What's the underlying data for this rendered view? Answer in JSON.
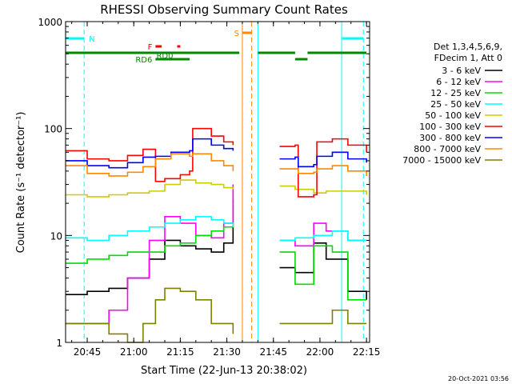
{
  "chart_data": {
    "type": "line",
    "title": "RHESSI Observing Summary Count Rates",
    "xlabel": "Start Time (22-Jun-13 20:38:02)",
    "ylabel": "Count Rate (s⁻¹ detector⁻¹)",
    "x_ticks": [
      "20:45",
      "21:00",
      "21:15",
      "21:30",
      "21:45",
      "22:00",
      "22:15"
    ],
    "y_ticks": [
      "1",
      "10",
      "100",
      "1000"
    ],
    "x_range": [
      "20:38:02",
      "22:16:00"
    ],
    "y_range": [
      1,
      1000
    ],
    "y_scale": "log",
    "legend_header": [
      "Det 1,3,4,5,6,9,",
      "FDecim 1, Att 0"
    ],
    "legend_placement": "right",
    "series": [
      {
        "name": "3 - 6 keV",
        "color": "#000000",
        "points": [
          [
            "20:38",
            2.8
          ],
          [
            "20:45",
            3.0
          ],
          [
            "20:52",
            3.2
          ],
          [
            "20:58",
            4.0
          ],
          [
            "21:05",
            6.0
          ],
          [
            "21:10",
            9.0
          ],
          [
            "21:15",
            8.0
          ],
          [
            "21:20",
            7.5
          ],
          [
            "21:25",
            7.0
          ],
          [
            "21:29",
            8.5
          ],
          [
            "21:32",
            22
          ],
          [
            "21:47",
            5.0
          ],
          [
            "21:52",
            4.5
          ],
          [
            "21:58",
            8.5
          ],
          [
            "22:02",
            6.0
          ],
          [
            "22:09",
            3.0
          ],
          [
            "22:15",
            2.5
          ]
        ]
      },
      {
        "name": "6 - 12 keV",
        "color": "#ff00ff",
        "points": [
          [
            "20:38",
            1.5
          ],
          [
            "20:45",
            1.5
          ],
          [
            "20:52",
            2.0
          ],
          [
            "20:58",
            4.0
          ],
          [
            "21:05",
            9.0
          ],
          [
            "21:10",
            15
          ],
          [
            "21:15",
            13
          ],
          [
            "21:20",
            10
          ],
          [
            "21:25",
            9.5
          ],
          [
            "21:29",
            13
          ],
          [
            "21:32",
            30
          ],
          [
            "21:47",
            9.0
          ],
          [
            "21:52",
            8.0
          ],
          [
            "21:58",
            13
          ],
          [
            "22:02",
            11
          ],
          [
            "22:09",
            9.0
          ],
          [
            "22:15",
            9.0
          ]
        ]
      },
      {
        "name": "12 - 25 keV",
        "color": "#00dd00",
        "points": [
          [
            "20:38",
            5.5
          ],
          [
            "20:45",
            6.0
          ],
          [
            "20:52",
            6.5
          ],
          [
            "20:58",
            7.0
          ],
          [
            "21:05",
            7.0
          ],
          [
            "21:10",
            8.0
          ],
          [
            "21:15",
            8.5
          ],
          [
            "21:20",
            10
          ],
          [
            "21:25",
            11
          ],
          [
            "21:29",
            12
          ],
          [
            "21:32",
            13
          ],
          [
            "21:47",
            7.0
          ],
          [
            "21:52",
            3.5
          ],
          [
            "21:56",
            3.5
          ],
          [
            "21:58",
            8.0
          ],
          [
            "22:04",
            7.0
          ],
          [
            "22:09",
            2.5
          ],
          [
            "22:15",
            2.5
          ]
        ]
      },
      {
        "name": "25 - 50 keV",
        "color": "#00ffff",
        "points": [
          [
            "20:38",
            9.5
          ],
          [
            "20:45",
            9.0
          ],
          [
            "20:52",
            10
          ],
          [
            "20:58",
            11
          ],
          [
            "21:05",
            12
          ],
          [
            "21:10",
            13
          ],
          [
            "21:15",
            14
          ],
          [
            "21:20",
            15
          ],
          [
            "21:25",
            14
          ],
          [
            "21:29",
            13
          ],
          [
            "21:32",
            12
          ],
          [
            "21:47",
            9.0
          ],
          [
            "21:52",
            9.5
          ],
          [
            "21:58",
            10
          ],
          [
            "22:04",
            11
          ],
          [
            "22:09",
            9.0
          ],
          [
            "22:15",
            9.0
          ]
        ]
      },
      {
        "name": "50 - 100 keV",
        "color": "#cccc00",
        "points": [
          [
            "20:38",
            24
          ],
          [
            "20:45",
            23
          ],
          [
            "20:52",
            24
          ],
          [
            "20:58",
            25
          ],
          [
            "21:05",
            26
          ],
          [
            "21:10",
            30
          ],
          [
            "21:15",
            33
          ],
          [
            "21:20",
            31
          ],
          [
            "21:25",
            30
          ],
          [
            "21:29",
            28
          ],
          [
            "21:32",
            27
          ],
          [
            "21:47",
            29
          ],
          [
            "21:52",
            27
          ],
          [
            "21:58",
            25
          ],
          [
            "22:02",
            26
          ],
          [
            "22:09",
            26
          ],
          [
            "22:15",
            24
          ]
        ]
      },
      {
        "name": "100 - 300 keV",
        "color": "#ff0000",
        "points": [
          [
            "20:38",
            62
          ],
          [
            "20:45",
            52
          ],
          [
            "20:52",
            50
          ],
          [
            "20:58",
            56
          ],
          [
            "21:03",
            64
          ],
          [
            "21:07",
            32
          ],
          [
            "21:10",
            34
          ],
          [
            "21:15",
            37
          ],
          [
            "21:18",
            40
          ],
          [
            "21:19",
            100
          ],
          [
            "21:25",
            85
          ],
          [
            "21:29",
            75
          ],
          [
            "21:32",
            70
          ],
          [
            "21:47",
            68
          ],
          [
            "21:52",
            70
          ],
          [
            "21:53",
            23
          ],
          [
            "21:56",
            23
          ],
          [
            "21:58",
            24
          ],
          [
            "21:59",
            75
          ],
          [
            "22:04",
            80
          ],
          [
            "22:09",
            70
          ],
          [
            "22:15",
            60
          ]
        ]
      },
      {
        "name": "300 - 800 keV",
        "color": "#0000ff",
        "points": [
          [
            "20:38",
            50
          ],
          [
            "20:45",
            45
          ],
          [
            "20:52",
            43
          ],
          [
            "20:58",
            48
          ],
          [
            "21:03",
            54
          ],
          [
            "21:07",
            55
          ],
          [
            "21:12",
            60
          ],
          [
            "21:18",
            62
          ],
          [
            "21:19",
            80
          ],
          [
            "21:25",
            70
          ],
          [
            "21:29",
            65
          ],
          [
            "21:32",
            62
          ],
          [
            "21:47",
            52
          ],
          [
            "21:52",
            54
          ],
          [
            "21:53",
            44
          ],
          [
            "21:58",
            46
          ],
          [
            "21:59",
            55
          ],
          [
            "22:04",
            60
          ],
          [
            "22:09",
            52
          ],
          [
            "22:15",
            48
          ]
        ]
      },
      {
        "name": "800 - 7000 keV",
        "color": "#ff8800",
        "points": [
          [
            "20:38",
            45
          ],
          [
            "20:45",
            38
          ],
          [
            "20:52",
            36
          ],
          [
            "20:58",
            39
          ],
          [
            "21:03",
            44
          ],
          [
            "21:07",
            52
          ],
          [
            "21:12",
            58
          ],
          [
            "21:18",
            55
          ],
          [
            "21:19",
            58
          ],
          [
            "21:25",
            50
          ],
          [
            "21:29",
            45
          ],
          [
            "21:32",
            40
          ],
          [
            "21:47",
            42
          ],
          [
            "21:52",
            42
          ],
          [
            "21:53",
            38
          ],
          [
            "21:58",
            39
          ],
          [
            "21:59",
            42
          ],
          [
            "22:04",
            45
          ],
          [
            "22:09",
            40
          ],
          [
            "22:15",
            36
          ]
        ]
      },
      {
        "name": "7000 - 15000 keV",
        "color": "#808000",
        "points": [
          [
            "20:38",
            1.5
          ],
          [
            "20:45",
            1.5
          ],
          [
            "20:52",
            1.2
          ],
          [
            "20:58",
            1.0
          ],
          [
            "21:03",
            1.5
          ],
          [
            "21:07",
            2.5
          ],
          [
            "21:10",
            3.2
          ],
          [
            "21:15",
            3.0
          ],
          [
            "21:20",
            2.5
          ],
          [
            "21:25",
            1.5
          ],
          [
            "21:32",
            1.2
          ],
          [
            "21:47",
            1.5
          ],
          [
            "21:52",
            1.5
          ],
          [
            "21:58",
            1.5
          ],
          [
            "22:04",
            2.0
          ],
          [
            "22:09",
            1.5
          ],
          [
            "22:15",
            1.5
          ]
        ]
      }
    ],
    "flag_bars": [
      {
        "label": "N",
        "color": "#00ffff",
        "segments": [
          [
            "20:38",
            "20:44"
          ],
          [
            "22:07",
            "22:14"
          ]
        ]
      },
      {
        "label": "F",
        "color": "#ff0000",
        "segments": [
          [
            "21:07",
            "21:09"
          ],
          [
            "21:14",
            "21:15"
          ]
        ]
      },
      {
        "label": "S",
        "color": "#ff8800",
        "segments": [
          [
            "21:35",
            "21:38"
          ]
        ]
      },
      {
        "label": "RD0",
        "color": "#008800",
        "segments": [
          [
            "20:38",
            "21:34"
          ],
          [
            "21:40",
            "21:52"
          ],
          [
            "21:56",
            "22:15"
          ]
        ]
      },
      {
        "label": "RD6",
        "color": "#008800",
        "segments": [
          [
            "21:07",
            "21:18"
          ],
          [
            "21:52",
            "21:56"
          ]
        ]
      }
    ],
    "vertical_lines": [
      {
        "time": "20:38",
        "color": "#00ffff",
        "style": "solid"
      },
      {
        "time": "20:44",
        "color": "#00ffff",
        "style": "dashed"
      },
      {
        "time": "21:35",
        "color": "#ff8800",
        "style": "solid"
      },
      {
        "time": "21:38",
        "color": "#ff8800",
        "style": "dashed"
      },
      {
        "time": "21:40",
        "color": "#00ffff",
        "style": "solid"
      },
      {
        "time": "22:07",
        "color": "#00ffff",
        "style": "solid"
      },
      {
        "time": "22:14",
        "color": "#00ffff",
        "style": "dashed"
      }
    ],
    "data_gap": [
      "21:33",
      "21:40"
    ],
    "footer": "20-Oct-2021 03:56"
  }
}
